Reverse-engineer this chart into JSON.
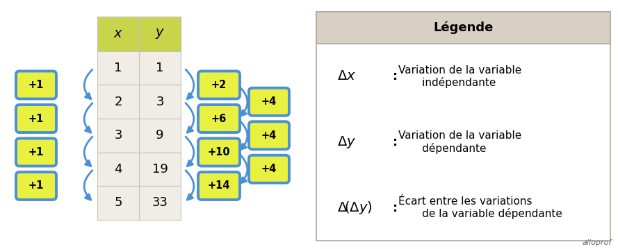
{
  "fig_bg": "#ffffff",
  "table_x_values": [
    1,
    2,
    3,
    4,
    5
  ],
  "table_y_values": [
    1,
    3,
    9,
    19,
    33
  ],
  "header_color": "#c8d44a",
  "cell_color": "#f0ede6",
  "cell_border_color": "#c8c3ba",
  "badge_fill": "#e8f040",
  "badge_border": "#4a90d9",
  "arrow_color": "#4a90d9",
  "left_badges": [
    "+1",
    "+1",
    "+1",
    "+1"
  ],
  "right_dy_badges": [
    "+2",
    "+6",
    "+10",
    "+14"
  ],
  "right_ddy_badges": [
    "+4",
    "+4",
    "+4"
  ],
  "legend_title": "Légende",
  "legend_bg": "#ffffff",
  "legend_header_bg": "#d9d0c4",
  "watermark": "alloprof"
}
